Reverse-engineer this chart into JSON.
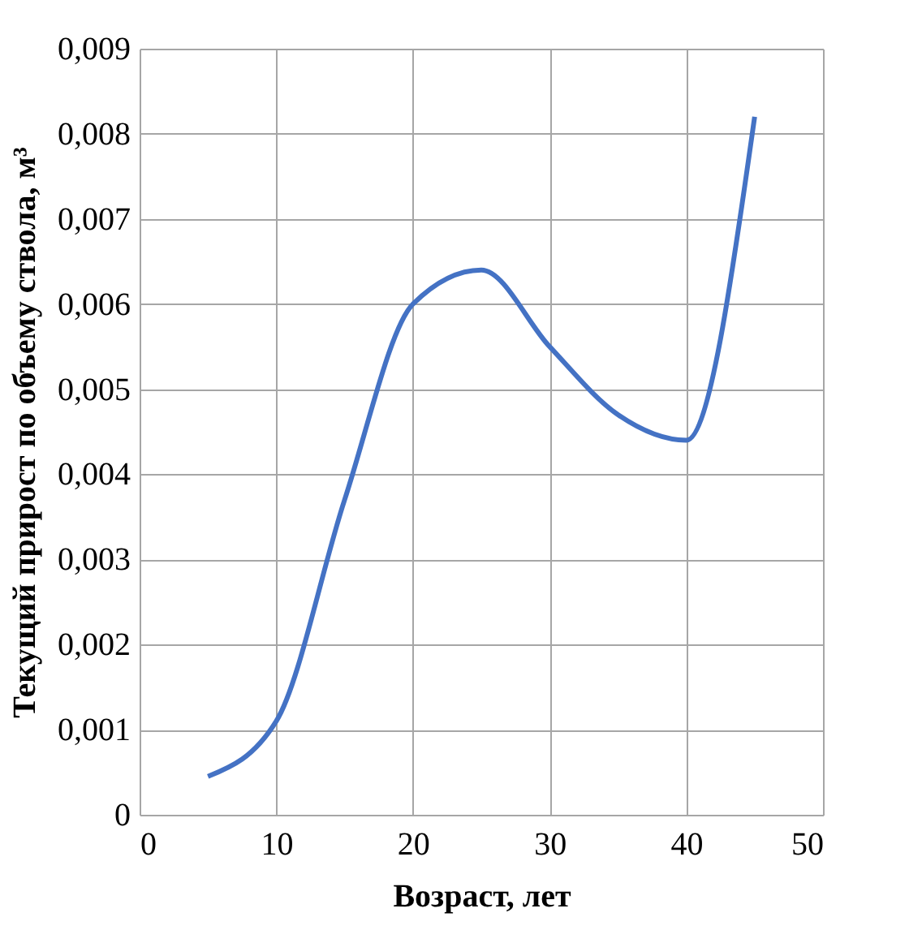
{
  "chart_data": {
    "type": "line",
    "xlabel": "Возраст, лет",
    "ylabel": "Текущий прирост по объему ствола, м³",
    "x": [
      5,
      10,
      15,
      20,
      25,
      30,
      35,
      40,
      45
    ],
    "series": [
      {
        "color": "#4472c4",
        "values": [
          0.00045,
          0.0011,
          0.0037,
          0.006,
          0.0064,
          0.0055,
          0.0047,
          0.0044,
          0.0082
        ]
      }
    ],
    "xlim": [
      0,
      50
    ],
    "xticks": [
      0,
      10,
      20,
      30,
      40,
      50
    ],
    "ylim": [
      0,
      0.009
    ],
    "yticks": [
      0,
      {
        "value": 0.001,
        "label": "0,001"
      },
      {
        "value": 0.002,
        "label": "0,002"
      },
      {
        "value": 0.003,
        "label": "0,003"
      },
      {
        "value": 0.004,
        "label": "0,004"
      },
      {
        "value": 0.005,
        "label": "0,005"
      },
      {
        "value": 0.006,
        "label": "0,006"
      },
      {
        "value": 0.007,
        "label": "0,007"
      },
      {
        "value": 0.008,
        "label": "0,008"
      },
      {
        "value": 0.009,
        "label": "0,009"
      }
    ],
    "grid": true,
    "marker": "none",
    "line_style": "solid"
  }
}
